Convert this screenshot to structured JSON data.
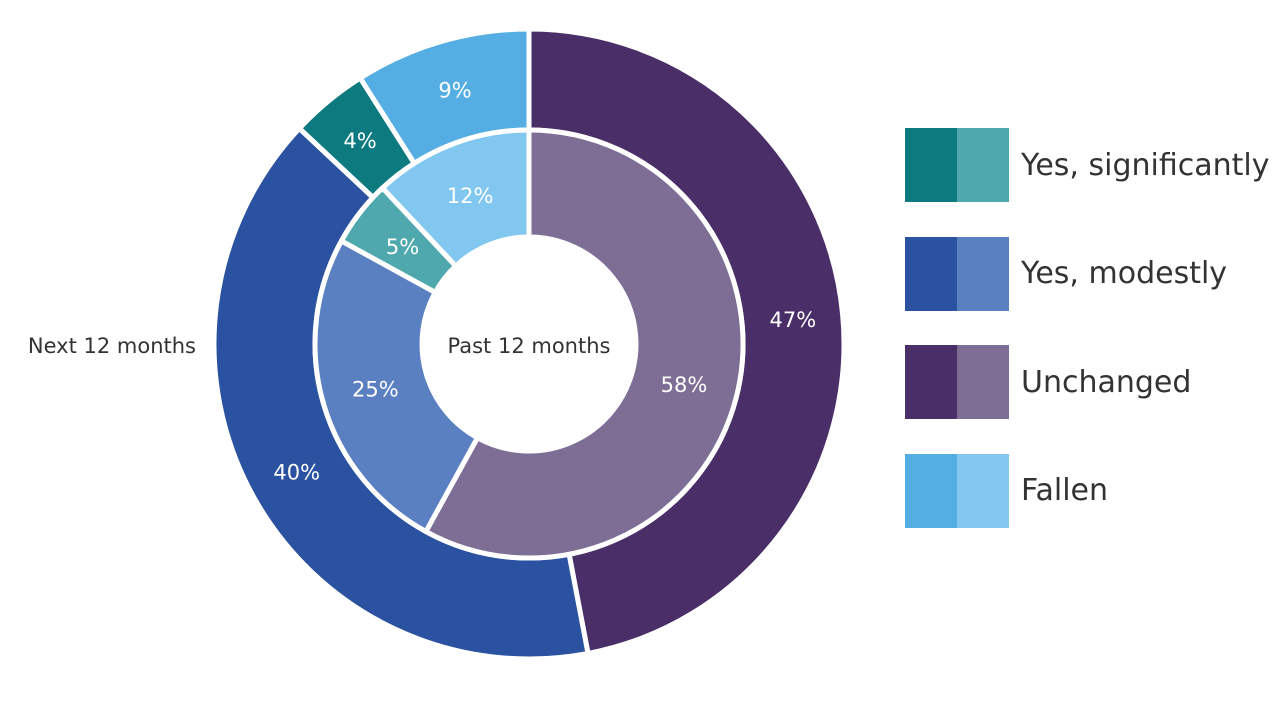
{
  "chart_data": {
    "type": "pie",
    "rings": [
      {
        "name": "Past 12 months",
        "categories": [
          "Yes, significantly",
          "Yes, modestly",
          "Unchanged",
          "Fallen"
        ],
        "values": [
          5,
          25,
          58,
          12
        ],
        "labels": [
          "5%",
          "25%",
          "58%",
          "12%"
        ]
      },
      {
        "name": "Next 12 months",
        "categories": [
          "Yes, significantly",
          "Yes, modestly",
          "Unchanged",
          "Fallen"
        ],
        "values": [
          4,
          40,
          47,
          9
        ],
        "labels": [
          "4%",
          "40%",
          "47%",
          "9%"
        ]
      }
    ],
    "legend": {
      "placement": "right",
      "entries": [
        "Yes, significantly",
        "Yes, modestly",
        "Unchanged",
        "Fallen"
      ]
    },
    "colors": {
      "outer": [
        "#0d7a80",
        "#2a52a0",
        "#4a2e68",
        "#55aee3"
      ],
      "inner": [
        "#4ea8ae",
        "#5b80c2",
        "#7e6e95",
        "#82c7ef"
      ]
    }
  }
}
